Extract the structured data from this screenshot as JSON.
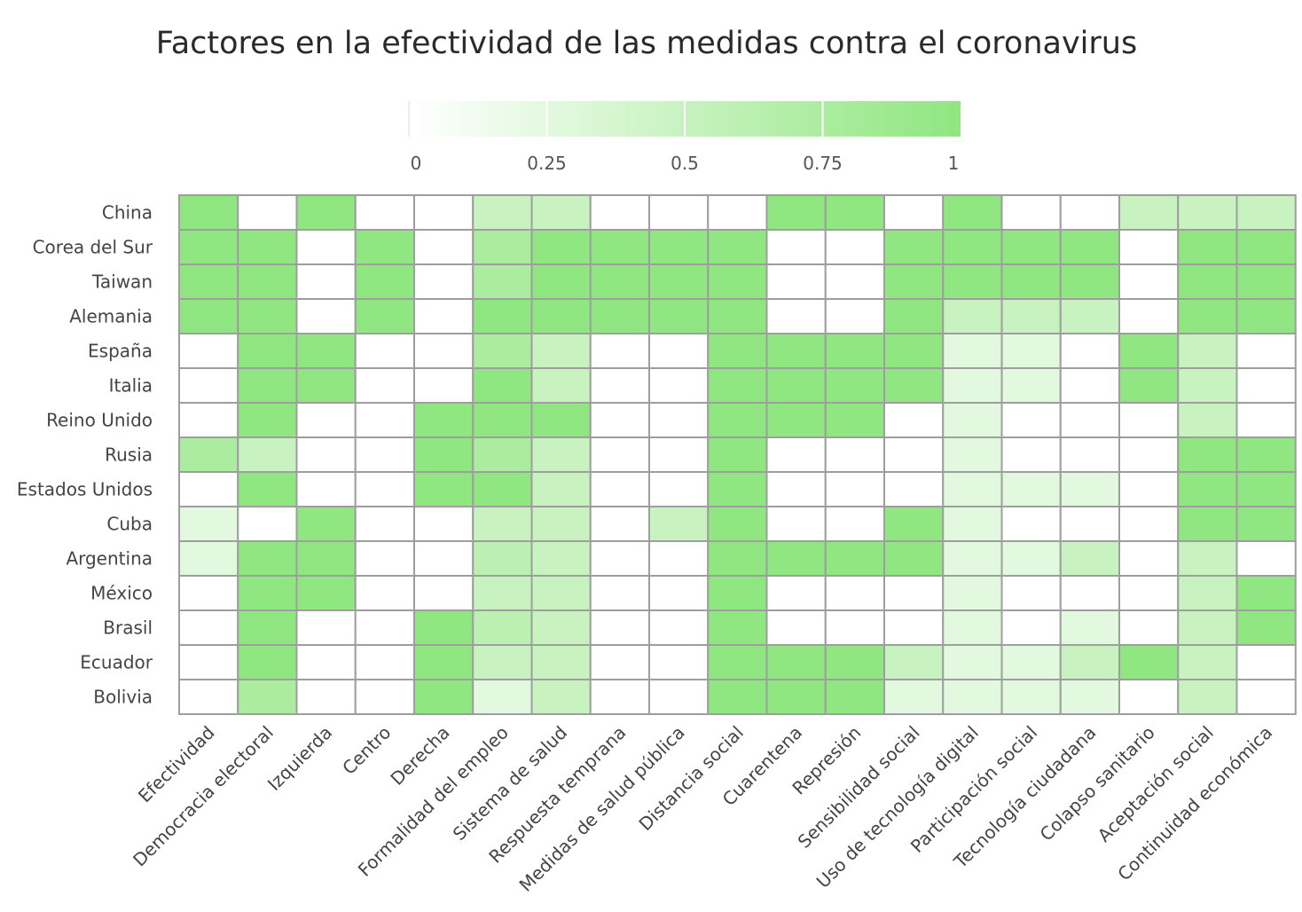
{
  "chart_data": {
    "type": "heatmap",
    "title": "Factores en la efectividad de las medidas contra el coronavirus",
    "rows": [
      "China",
      "Corea del Sur",
      "Taiwan",
      "Alemania",
      "España",
      "Italia",
      "Reino Unido",
      "Rusia",
      "Estados Unidos",
      "Cuba",
      "Argentina",
      "México",
      "Brasil",
      "Ecuador",
      "Bolivia"
    ],
    "columns": [
      "Efectividad",
      "Democracia electoral",
      "Izquierda",
      "Centro",
      "Derecha",
      "Formalidad del empleo",
      "Sistema de salud",
      "Respuesta temprana",
      "Medidas de salud pública",
      "Distancia social",
      "Cuarentena",
      "Represión",
      "Sensibilidad social",
      "Uso de tecnología digital",
      "Participación social",
      "Tecnología ciudadana",
      "Colapso sanitario",
      "Aceptación social",
      "Continuidad económica"
    ],
    "values": [
      [
        1,
        0,
        1,
        0,
        0,
        0.5,
        0.5,
        0,
        0,
        0,
        1,
        1,
        0,
        1,
        0,
        0,
        0.5,
        0.5,
        0.5
      ],
      [
        1,
        1,
        0,
        1,
        0,
        0.75,
        1,
        1,
        1,
        1,
        0,
        0,
        1,
        1,
        1,
        1,
        0,
        1,
        1
      ],
      [
        1,
        1,
        0,
        1,
        0,
        0.75,
        1,
        1,
        1,
        1,
        0,
        0,
        1,
        1,
        1,
        1,
        0,
        1,
        1
      ],
      [
        1,
        1,
        0,
        1,
        0,
        1,
        1,
        1,
        1,
        1,
        0,
        0,
        1,
        0.5,
        0.5,
        0.5,
        0,
        1,
        1
      ],
      [
        0,
        1,
        1,
        0,
        0,
        0.75,
        0.5,
        0,
        0,
        1,
        1,
        1,
        1,
        0.25,
        0.25,
        0,
        1,
        0.5,
        0
      ],
      [
        0,
        1,
        1,
        0,
        0,
        1,
        0.5,
        0,
        0,
        1,
        1,
        1,
        1,
        0.25,
        0.25,
        0,
        1,
        0.5,
        0
      ],
      [
        0,
        1,
        0,
        0,
        1,
        1,
        1,
        0,
        0,
        1,
        1,
        1,
        0,
        0.25,
        0,
        0,
        0,
        0.5,
        0
      ],
      [
        0.75,
        0.5,
        0,
        0,
        1,
        0.75,
        0.5,
        0,
        0,
        1,
        0,
        0,
        0,
        0.25,
        0,
        0,
        0,
        1,
        1
      ],
      [
        0,
        1,
        0,
        0,
        1,
        1,
        0.5,
        0,
        0,
        1,
        0,
        0,
        0,
        0.25,
        0.25,
        0.25,
        0,
        1,
        1
      ],
      [
        0.25,
        0,
        1,
        0,
        0,
        0.5,
        0.5,
        0,
        0.5,
        1,
        0,
        0,
        1,
        0.25,
        0,
        0,
        0,
        1,
        1
      ],
      [
        0.25,
        1,
        1,
        0,
        0,
        0.6,
        0.5,
        0,
        0,
        1,
        1,
        1,
        1,
        0.25,
        0.25,
        0.5,
        0,
        0.5,
        0
      ],
      [
        0,
        1,
        1,
        0,
        0,
        0.5,
        0.5,
        0,
        0,
        1,
        0,
        0,
        0,
        0.25,
        0,
        0,
        0,
        0.5,
        1
      ],
      [
        0,
        1,
        0,
        0,
        1,
        0.6,
        0.5,
        0,
        0,
        1,
        0,
        0,
        0,
        0.25,
        0,
        0.25,
        0,
        0.5,
        1
      ],
      [
        0,
        1,
        0,
        0,
        1,
        0.5,
        0.5,
        0,
        0,
        1,
        1,
        1,
        0.5,
        0.25,
        0.25,
        0.5,
        1,
        0.5,
        0
      ],
      [
        0,
        0.75,
        0,
        0,
        1,
        0.25,
        0.5,
        0,
        0,
        1,
        1,
        1,
        0.25,
        0.25,
        0.25,
        0.25,
        0,
        0.5,
        0
      ]
    ],
    "colorscale": {
      "min": 0,
      "max": 1,
      "min_color": "#ffffff",
      "max_color": "#90e680"
    },
    "legend": {
      "placement": "top-center",
      "ticks": [
        "0",
        "0.25",
        "0.5",
        "0.75",
        "1"
      ]
    },
    "grid": true,
    "grid_color": "#9e9e9e"
  }
}
